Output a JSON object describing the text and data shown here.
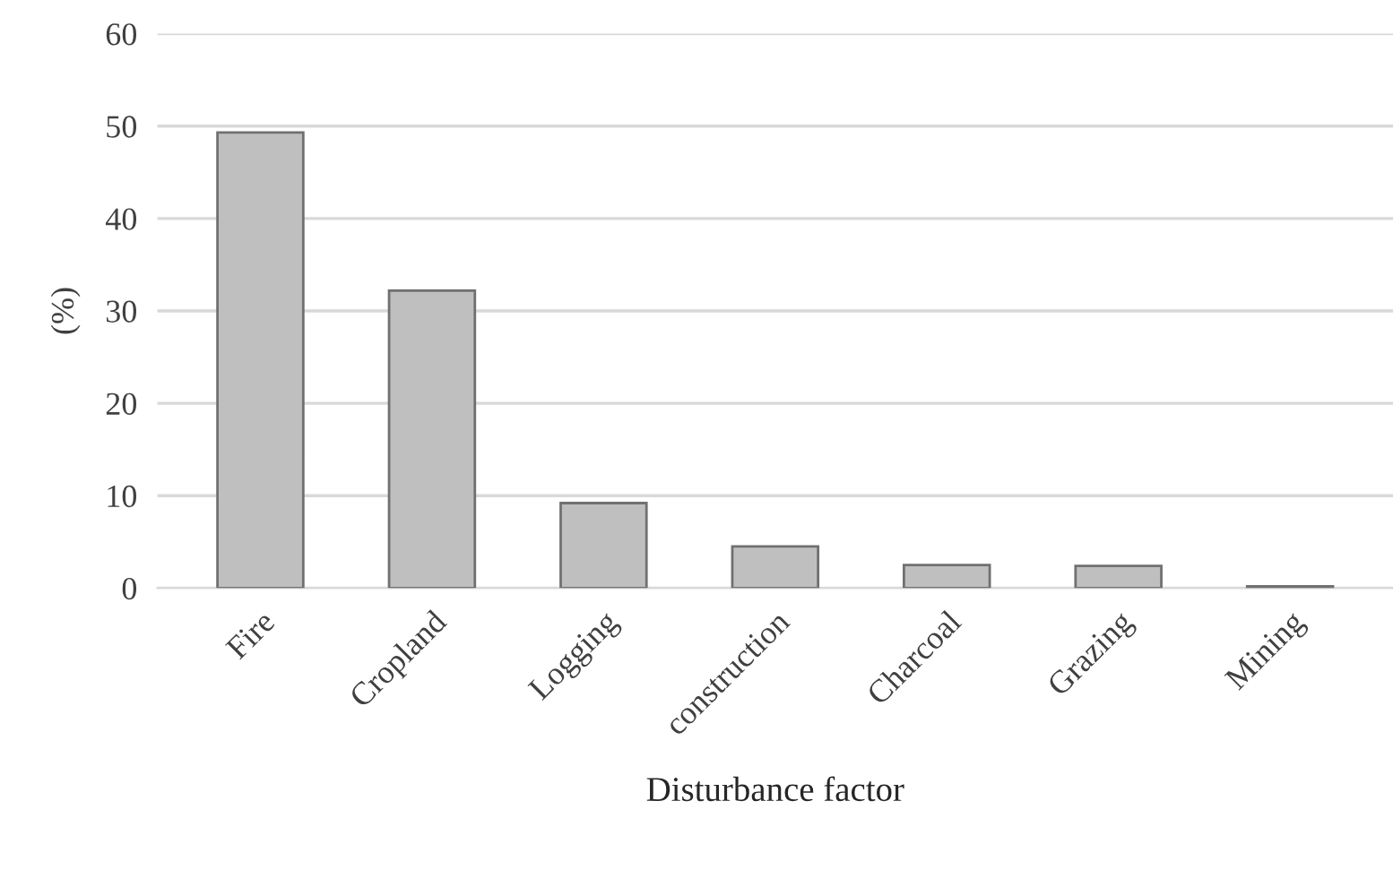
{
  "chart_data": {
    "type": "bar",
    "categories": [
      "Fire",
      "Cropland",
      "Logging",
      "construction",
      "Charcoal",
      "Grazing",
      "Mining"
    ],
    "values": [
      49.3,
      32.2,
      9.2,
      4.5,
      2.5,
      2.4,
      0.2
    ],
    "color": "#bfbfbf",
    "xlabel": "Disturbance factor",
    "ylabel": "(%)",
    "ylim": [
      0,
      60
    ],
    "yticks": [
      0,
      10,
      20,
      30,
      40,
      50,
      60
    ],
    "grid": "y"
  }
}
